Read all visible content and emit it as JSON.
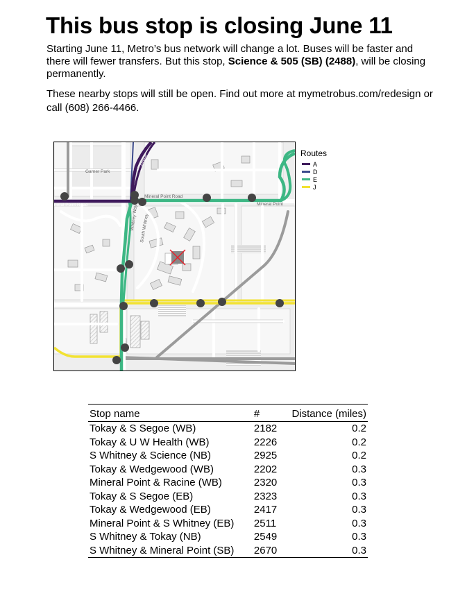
{
  "title": "This bus stop is closing June 11",
  "intro": {
    "part1": "Starting June 11, Metro’s bus network will change a lot.  Buses will be faster and there will fewer transfers.  But this stop, ",
    "stop_name": "Science & 505 (SB) (2488)",
    "part2": ", will be closing permanently."
  },
  "nearby_text": "These nearby stops will still be open.  Find out more at mymetrobus.com/redesign or call (608) 266-4466.",
  "map": {
    "labels": {
      "garner_park": "Garner Park",
      "mineral_point_road": "Mineral Point Road",
      "mineral_point_left": "neral Point Road",
      "mineral_point_right": "Mineral Point",
      "whitney_way": "Whitney Way",
      "south_whitney": "South Whitney",
      "segoe": "Segoe"
    },
    "colors": {
      "route_a": "#3f1a5c",
      "route_d": "#3b4a8c",
      "route_e": "#3db784",
      "route_j": "#f2e233",
      "stop_marker": "#444444",
      "closed_stop": "#e8202a"
    }
  },
  "legend": {
    "title": "Routes",
    "items": [
      {
        "label": "A",
        "color": "#3f1a5c"
      },
      {
        "label": "D",
        "color": "#3b4a8c"
      },
      {
        "label": "E",
        "color": "#3db784"
      },
      {
        "label": "J",
        "color": "#f2e233"
      }
    ]
  },
  "table": {
    "headers": {
      "name": "Stop name",
      "number": "#",
      "distance": "Distance (miles)"
    },
    "rows": [
      {
        "name": "Tokay & S Segoe (WB)",
        "number": "2182",
        "distance": "0.2"
      },
      {
        "name": "Tokay & U W Health (WB)",
        "number": "2226",
        "distance": "0.2"
      },
      {
        "name": "S Whitney & Science (NB)",
        "number": "2925",
        "distance": "0.2"
      },
      {
        "name": "Tokay & Wedgewood (WB)",
        "number": "2202",
        "distance": "0.3"
      },
      {
        "name": "Mineral Point & Racine (WB)",
        "number": "2320",
        "distance": "0.3"
      },
      {
        "name": "Tokay & S Segoe (EB)",
        "number": "2323",
        "distance": "0.3"
      },
      {
        "name": "Tokay & Wedgewood (EB)",
        "number": "2417",
        "distance": "0.3"
      },
      {
        "name": "Mineral Point & S Whitney (EB)",
        "number": "2511",
        "distance": "0.3"
      },
      {
        "name": "S Whitney & Tokay (NB)",
        "number": "2549",
        "distance": "0.3"
      },
      {
        "name": "S Whitney & Mineral Point (SB)",
        "number": "2670",
        "distance": "0.3"
      }
    ]
  }
}
